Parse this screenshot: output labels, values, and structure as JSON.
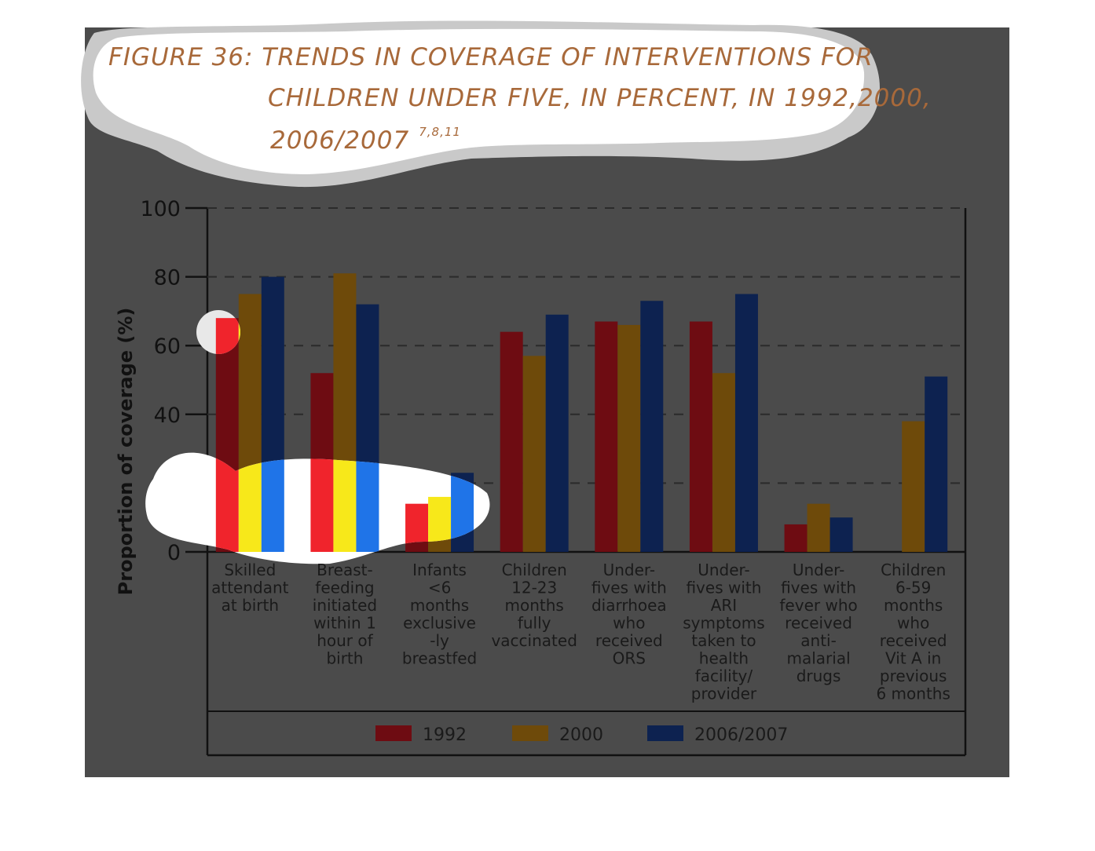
{
  "title": {
    "line1": "FIGURE 36: TRENDS IN COVERAGE OF INTERVENTIONS FOR",
    "line2": "CHILDREN UNDER FIVE, IN PERCENT, IN 1992,2000,",
    "line3": "2006/2007",
    "superscript": "7,8,11"
  },
  "colors": {
    "1992": "#6e0c12",
    "2000": "#6e4a0a",
    "2006/2007": "#0d2250",
    "overlay": "#4a4a4a",
    "highlight_1992": "#f0242c",
    "highlight_2000": "#f7e81a",
    "highlight_2006/2007": "#1f74e8"
  },
  "chart_data": {
    "type": "bar",
    "ylabel": "Proportion of coverage (%)",
    "ylim": [
      0,
      100
    ],
    "yticks": [
      "0",
      "20",
      "40",
      "60",
      "80",
      "100"
    ],
    "grid": "dashed horizontal",
    "legend_position": "bottom",
    "categories": [
      [
        "Skilled",
        "attendant",
        "at birth"
      ],
      [
        "Breast-",
        "feeding",
        "initiated",
        "within 1",
        "hour of",
        "birth"
      ],
      [
        "Infants",
        "<6",
        "months",
        "exclusive",
        "-ly",
        "breastfed"
      ],
      [
        "Children",
        "12-23",
        "months",
        "fully",
        "vaccinated"
      ],
      [
        "Under-",
        "fives with",
        "diarrhoea",
        "who",
        "received",
        "ORS"
      ],
      [
        "Under-",
        "fives with",
        "ARI",
        "symptoms",
        "taken to",
        "health",
        "facility/",
        "provider"
      ],
      [
        "Under-",
        "fives with",
        "fever who",
        "received",
        "anti-",
        "malarial",
        "drugs"
      ],
      [
        "Children",
        "6-59",
        "months",
        "who",
        "received",
        "Vit A in",
        "previous",
        "6 months"
      ]
    ],
    "series": [
      {
        "name": "1992",
        "values": [
          68,
          52,
          14,
          64,
          67,
          67,
          8,
          null
        ]
      },
      {
        "name": "2000",
        "values": [
          75,
          81,
          16,
          57,
          66,
          52,
          14,
          38
        ]
      },
      {
        "name": "2006/2007",
        "values": [
          80,
          72,
          23,
          69,
          73,
          75,
          10,
          51
        ]
      }
    ]
  }
}
